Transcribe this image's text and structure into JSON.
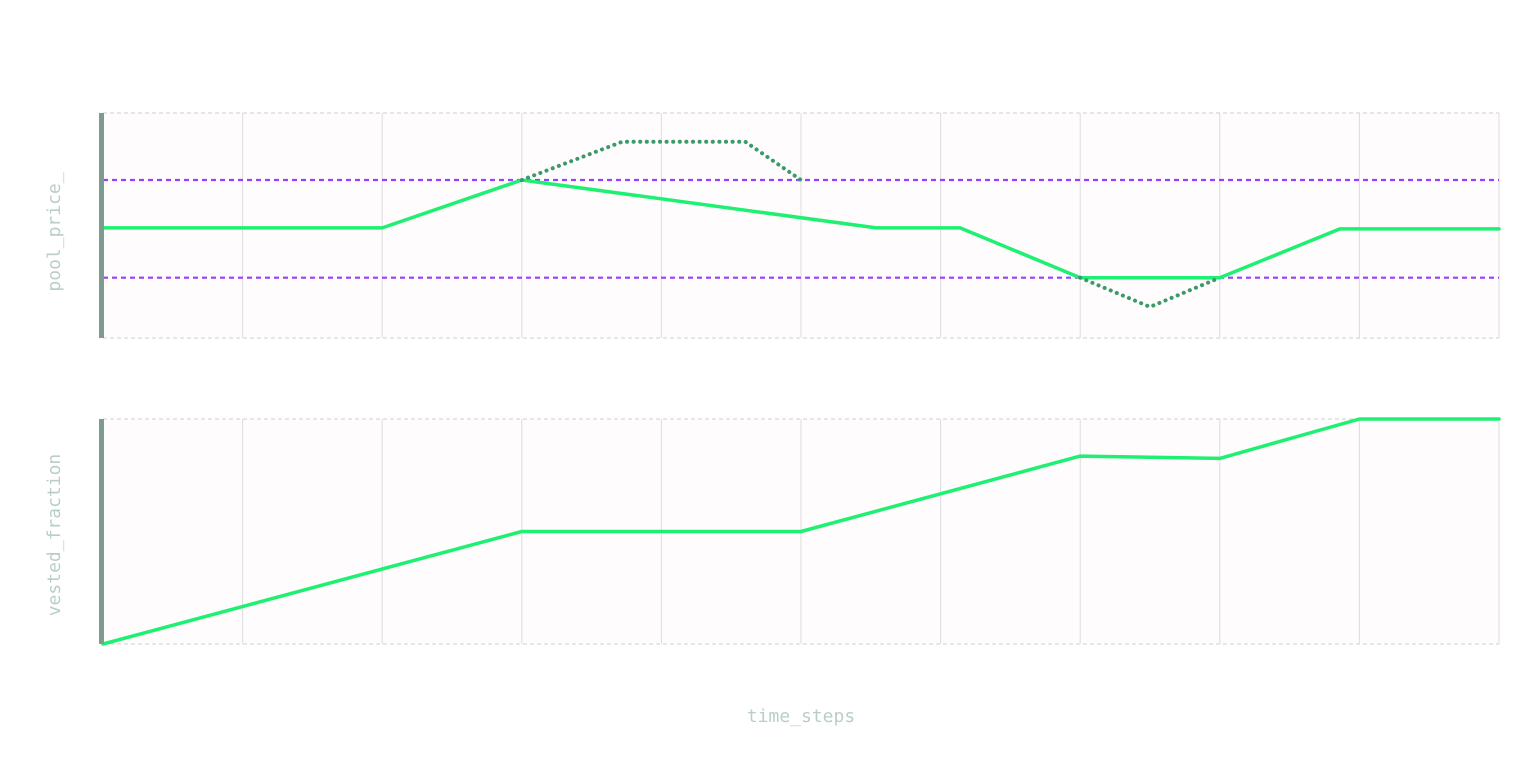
{
  "chart_data": [
    {
      "type": "line",
      "ylabel": "pool_price_",
      "x": [
        0,
        1,
        2,
        3,
        4,
        5,
        6,
        7,
        8,
        9,
        10
      ],
      "ylim": [
        0,
        4.7
      ],
      "bands": [
        3.3,
        1.26
      ],
      "series": [
        {
          "style": "solid",
          "points": [
            [
              0,
              2.3
            ],
            [
              2,
              2.3
            ],
            [
              3,
              3.3
            ],
            [
              5.54,
              2.3
            ],
            [
              6.14,
              2.3
            ],
            [
              7,
              1.26
            ],
            [
              8,
              1.26
            ],
            [
              8.86,
              2.28
            ],
            [
              10,
              2.28
            ]
          ]
        },
        {
          "style": "dotted",
          "points": [
            [
              3,
              3.3
            ],
            [
              3.72,
              4.1
            ],
            [
              4.6,
              4.1
            ],
            [
              5,
              3.3
            ]
          ]
        },
        {
          "style": "dotted",
          "points": [
            [
              7,
              1.26
            ],
            [
              7.5,
              0.65
            ],
            [
              8,
              1.26
            ]
          ]
        }
      ],
      "grid": true
    },
    {
      "type": "line",
      "ylabel": "vested_fraction",
      "xlabel": "time_steps",
      "x": [
        0,
        1,
        2,
        3,
        4,
        5,
        6,
        7,
        8,
        9,
        10
      ],
      "ylim": [
        0,
        1
      ],
      "series": [
        {
          "style": "solid",
          "points": [
            [
              0,
              0
            ],
            [
              3,
              0.5
            ],
            [
              5,
              0.5
            ],
            [
              7,
              0.835
            ],
            [
              8,
              0.825
            ],
            [
              9,
              1.0
            ],
            [
              10,
              1.0
            ]
          ]
        }
      ],
      "grid": true
    }
  ],
  "colors": {
    "line": "#1ef072",
    "dotted": "#3a9a68",
    "band": "#9b3dff",
    "axis_bar": "#7e9b90",
    "grid": "#dcdcdc",
    "panel_bg": "#fffcfd",
    "label": "#b9cfc6"
  }
}
